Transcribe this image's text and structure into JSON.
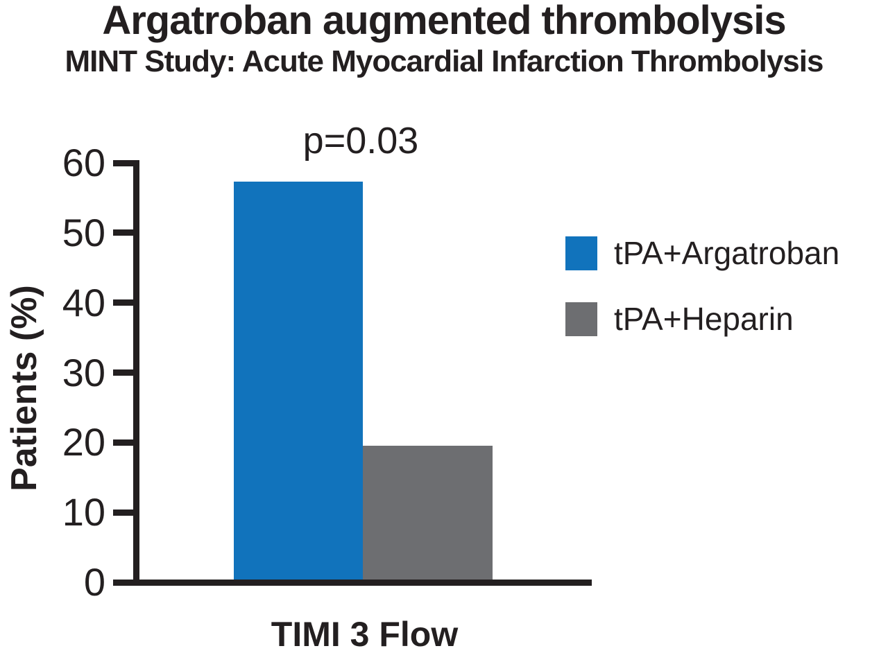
{
  "title": "Argatroban augmented thrombolysis",
  "subtitle": "MINT Study: Acute Myocardial Infarction Thrombolysis",
  "colors": {
    "argatroban_blue": "#1173bc",
    "heparin_gray": "#6d6e71",
    "axis_black": "#231f20"
  },
  "chart_data": {
    "type": "bar",
    "title": "Argatroban augmented thrombolysis",
    "subtitle": "MINT Study: Acute Myocardial Infarction Thrombolysis",
    "categories": [
      "TIMI 3 Flow"
    ],
    "series": [
      {
        "name": "tPA+Argatroban",
        "values": [
          57.3
        ],
        "color": "#1173bc"
      },
      {
        "name": "tPA+Heparin",
        "values": [
          19.5
        ],
        "color": "#6d6e71"
      }
    ],
    "annotation": "p=0.03",
    "xlabel": "TIMI 3 Flow",
    "ylabel": "Patients (%)",
    "ylim": [
      0,
      60
    ],
    "yticks": [
      0,
      10,
      20,
      30,
      40,
      50,
      60
    ],
    "grid": false,
    "legend_position": "right"
  }
}
